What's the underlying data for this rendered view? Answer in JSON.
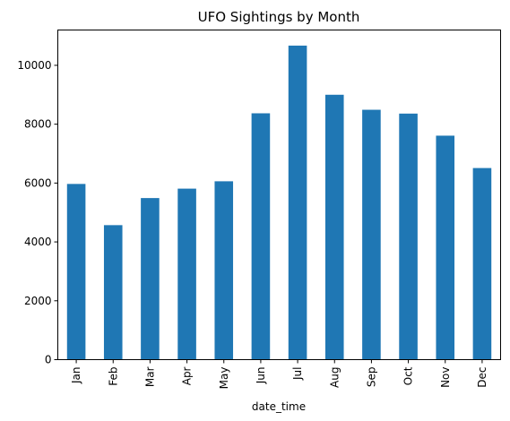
{
  "chart_data": {
    "type": "bar",
    "title": "UFO Sightings by Month",
    "xlabel": "date_time",
    "ylabel": "",
    "categories": [
      "Jan",
      "Feb",
      "Mar",
      "Apr",
      "May",
      "Jun",
      "Jul",
      "Aug",
      "Sep",
      "Oct",
      "Nov",
      "Dec"
    ],
    "values": [
      5970,
      4570,
      5490,
      5810,
      6060,
      8370,
      10670,
      9000,
      8490,
      8360,
      7610,
      6510
    ],
    "ylim": [
      0,
      11200
    ],
    "yticks": [
      0,
      2000,
      4000,
      6000,
      8000,
      10000
    ],
    "bar_color": "#1f77b4",
    "grid": false,
    "legend": "none"
  }
}
